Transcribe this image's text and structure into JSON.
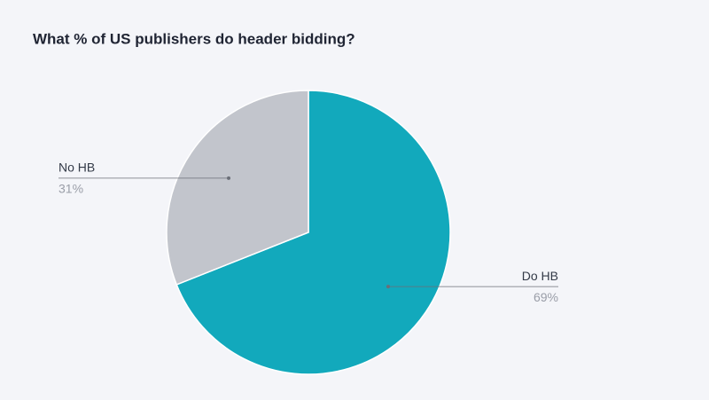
{
  "chart_data": {
    "type": "pie",
    "title": "What % of US publishers do header bidding?",
    "categories": [
      "Do HB",
      "No HB"
    ],
    "values": [
      69,
      31
    ],
    "value_labels": [
      "69%",
      "31%"
    ],
    "colors": [
      "#12a9bc",
      "#c2c5cc"
    ]
  }
}
